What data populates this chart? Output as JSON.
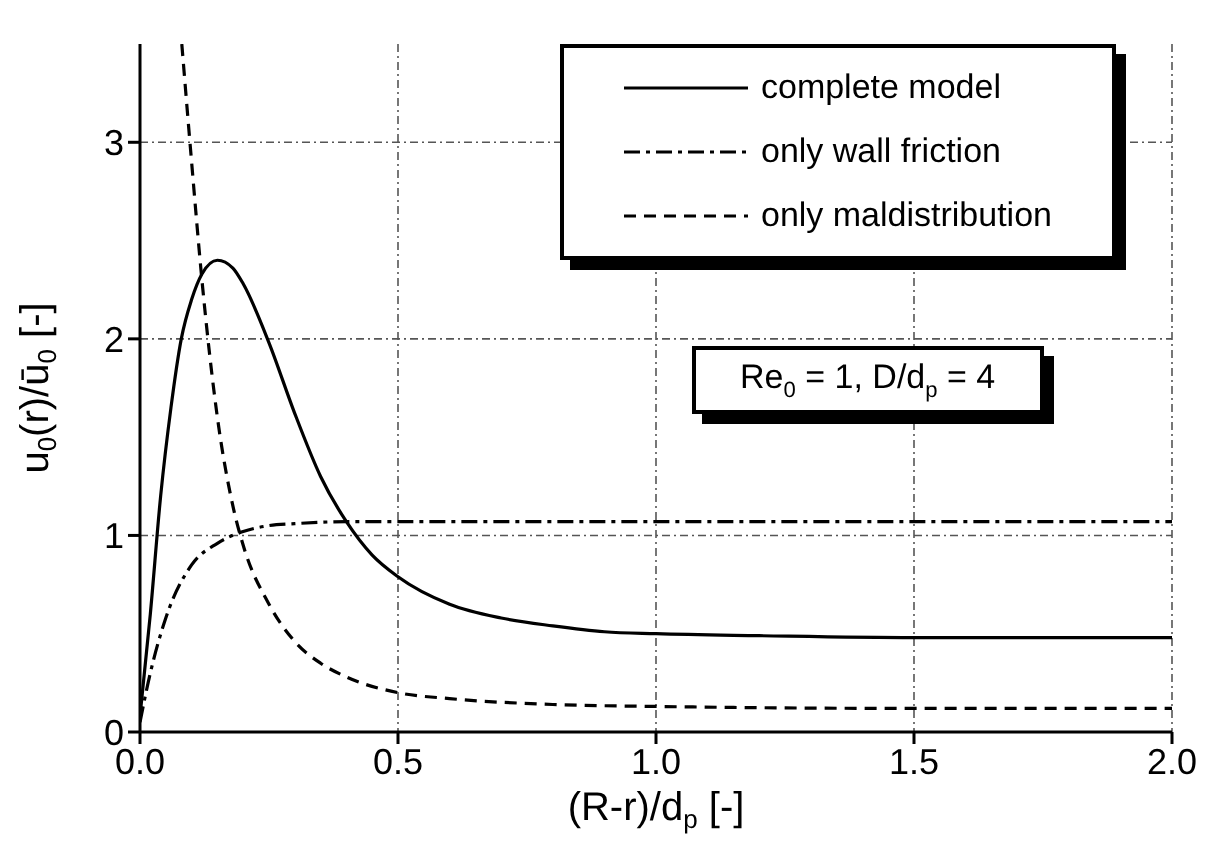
{
  "chart_data": {
    "type": "line",
    "xlabel": "(R-r)/d$_{p}$ [-]",
    "ylabel": "u$_{0}$(r)/ū$_{0}$ [-]",
    "xlim": [
      0,
      2
    ],
    "xticks": [
      {
        "value": 0,
        "label": "0.0"
      },
      {
        "value": 0.5,
        "label": "0.5"
      },
      {
        "value": 1,
        "label": "1.0"
      },
      {
        "value": 1.5,
        "label": "1.5"
      },
      {
        "value": 2,
        "label": "2.0"
      }
    ],
    "ylim": [
      0,
      3.5
    ],
    "yticks": [
      0,
      1,
      2,
      3
    ],
    "grid": true,
    "legend": "top right",
    "marker": "none",
    "annotations": [
      "Re$_{0}$ = 1, D/d$_{p}$ = 4"
    ],
    "series": [
      {
        "name": "complete model",
        "color": "#000000",
        "line_style": "solid",
        "x": [
          0,
          0.02,
          0.04,
          0.06,
          0.08,
          0.1,
          0.12,
          0.15,
          0.18,
          0.2,
          0.25,
          0.3,
          0.35,
          0.4,
          0.45,
          0.5,
          0.6,
          0.7,
          0.8,
          0.9,
          1.0,
          1.2,
          1.5,
          2.0
        ],
        "values": [
          0.08,
          0.6,
          1.2,
          1.65,
          2.0,
          2.2,
          2.33,
          2.4,
          2.36,
          2.28,
          1.98,
          1.62,
          1.3,
          1.07,
          0.9,
          0.79,
          0.65,
          0.58,
          0.54,
          0.51,
          0.5,
          0.49,
          0.48,
          0.48
        ]
      },
      {
        "name": "only wall friction",
        "color": "#000000",
        "line_style": "dashdot",
        "x": [
          0,
          0.02,
          0.05,
          0.1,
          0.15,
          0.2,
          0.25,
          0.3,
          0.4,
          2.0
        ],
        "values": [
          0.05,
          0.3,
          0.58,
          0.85,
          0.96,
          1.02,
          1.05,
          1.06,
          1.07,
          1.07
        ]
      },
      {
        "name": "only maldistribution",
        "color": "#000000",
        "line_style": "dashed",
        "x": [
          0.081,
          0.1,
          0.12,
          0.15,
          0.18,
          0.2,
          0.25,
          0.3,
          0.35,
          0.4,
          0.5,
          0.6,
          0.8,
          1.0,
          1.5,
          2.0
        ],
        "values": [
          3.5,
          2.9,
          2.3,
          1.6,
          1.15,
          0.95,
          0.65,
          0.46,
          0.35,
          0.28,
          0.2,
          0.17,
          0.14,
          0.13,
          0.12,
          0.12
        ]
      }
    ]
  }
}
